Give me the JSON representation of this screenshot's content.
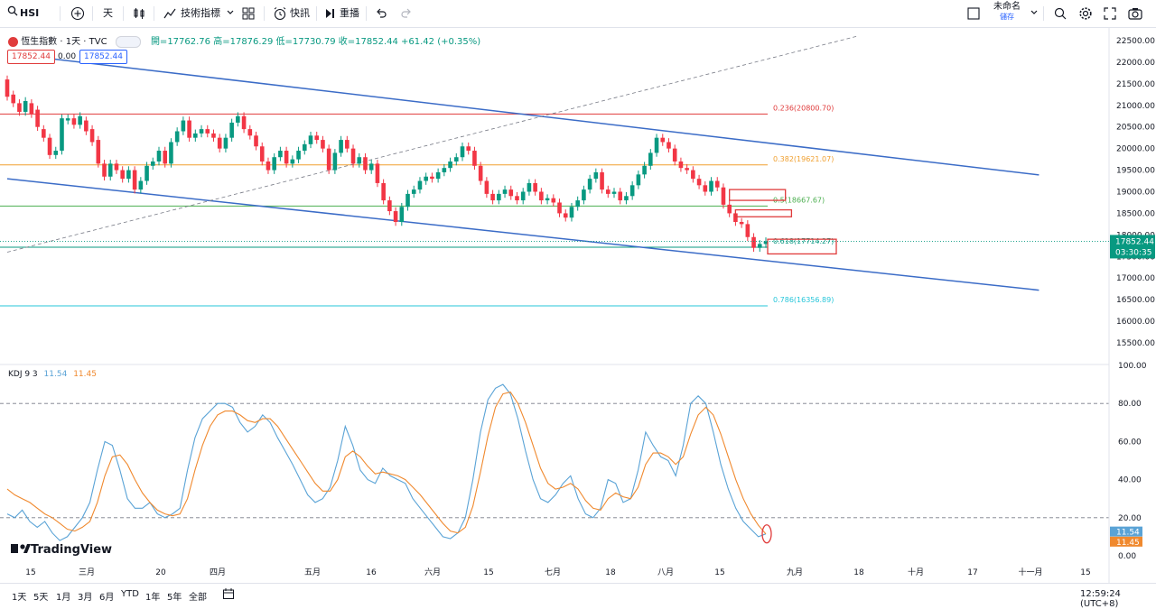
{
  "toolbar": {
    "symbol": "HSI",
    "interval": "天",
    "indicators_label": "技術指標",
    "alert_label": "快訊",
    "replay_label": "重播",
    "layout_name": "未命名",
    "save_label": "儲存",
    "icons": [
      "search-icon",
      "plus-icon",
      "candle-icon",
      "indicator-icon",
      "grid-icon",
      "alarm-icon",
      "replay-icon",
      "undo-icon",
      "redo-icon",
      "layout-icon",
      "chevron-icon",
      "zoom-search-icon",
      "gear-icon",
      "camera-icon",
      "fullscreen-icon"
    ]
  },
  "legend": {
    "title": "恆生指數 · 1天 · TVC",
    "ohlc": "開=17762.76  高=17876.29  低=17730.79  收=17852.44  +61.42 (+0.35%)",
    "bid": "17852.44",
    "spread": "0.00",
    "ask": "17852.44"
  },
  "kdj_legend": {
    "name": "KDJ 9 3",
    "k": "11.54",
    "d": "11.45"
  },
  "watermark": "TradingView",
  "bottombar": {
    "ranges": [
      "1天",
      "5天",
      "1月",
      "3月",
      "6月",
      "YTD",
      "1年",
      "5年",
      "全部"
    ],
    "clock": "12:59:24 (UTC+8)"
  },
  "chart_data": [
    {
      "type": "candlestick",
      "title": "恆生指數 · 1天 · TVC",
      "ylim": [
        15500,
        22500
      ],
      "y_ticks": [
        "22500.00",
        "22000.00",
        "21500.00",
        "21000.00",
        "20500.00",
        "20000.00",
        "19500.00",
        "19000.00",
        "18500.00",
        "18000.00",
        "17500.00",
        "17000.00",
        "16500.00",
        "16000.00",
        "15500.00"
      ],
      "x_ticks": [
        "15",
        "三月",
        "20",
        "四月",
        "五月",
        "16",
        "六月",
        "15",
        "七月",
        "18",
        "八月",
        "15",
        "九月",
        "18",
        "十月",
        "17",
        "十一月",
        "15"
      ],
      "last_price": "17852.44",
      "countdown": "03:30:35",
      "candles": [
        [
          21600,
          21200
        ],
        [
          21250,
          21050
        ],
        [
          21050,
          20850
        ],
        [
          20850,
          21100
        ],
        [
          21050,
          20800
        ],
        [
          20900,
          20500
        ],
        [
          20450,
          20250
        ],
        [
          20250,
          19850
        ],
        [
          19850,
          19950
        ],
        [
          19950,
          20700
        ],
        [
          20650,
          20700
        ],
        [
          20700,
          20550
        ],
        [
          20550,
          20750
        ],
        [
          20650,
          20400
        ],
        [
          20450,
          20150
        ],
        [
          20200,
          19650
        ],
        [
          19650,
          19350
        ],
        [
          19350,
          19650
        ],
        [
          19650,
          19500
        ],
        [
          19500,
          19300
        ],
        [
          19300,
          19500
        ],
        [
          19500,
          19050
        ],
        [
          19050,
          19250
        ],
        [
          19250,
          19600
        ],
        [
          19600,
          19700
        ],
        [
          19700,
          19950
        ],
        [
          19950,
          19650
        ],
        [
          19650,
          20150
        ],
        [
          20150,
          20400
        ],
        [
          20400,
          20650
        ],
        [
          20650,
          20250
        ],
        [
          20250,
          20350
        ],
        [
          20350,
          20450
        ],
        [
          20450,
          20350
        ],
        [
          20350,
          20250
        ],
        [
          20250,
          20000
        ],
        [
          20000,
          20250
        ],
        [
          20250,
          20600
        ],
        [
          20600,
          20750
        ],
        [
          20750,
          20450
        ],
        [
          20450,
          20300
        ],
        [
          20300,
          20050
        ],
        [
          20050,
          19700
        ],
        [
          19700,
          19500
        ],
        [
          19500,
          19800
        ],
        [
          19800,
          19950
        ],
        [
          19950,
          19650
        ],
        [
          19650,
          19750
        ],
        [
          19750,
          19950
        ],
        [
          19950,
          20100
        ],
        [
          20100,
          20300
        ],
        [
          20300,
          20200
        ],
        [
          20200,
          20000
        ],
        [
          20000,
          19500
        ],
        [
          19500,
          19900
        ],
        [
          19900,
          20200
        ],
        [
          20200,
          20000
        ],
        [
          20000,
          19650
        ],
        [
          19650,
          19800
        ],
        [
          19800,
          19500
        ],
        [
          19500,
          19650
        ],
        [
          19650,
          19200
        ],
        [
          19200,
          18800
        ],
        [
          18800,
          18550
        ],
        [
          18550,
          18300
        ],
        [
          18300,
          18650
        ],
        [
          18650,
          18950
        ],
        [
          18950,
          19050
        ],
        [
          19050,
          19250
        ],
        [
          19250,
          19350
        ],
        [
          19350,
          19300
        ],
        [
          19300,
          19450
        ],
        [
          19450,
          19550
        ],
        [
          19550,
          19700
        ],
        [
          19700,
          19800
        ],
        [
          19800,
          20050
        ],
        [
          20050,
          19950
        ],
        [
          19950,
          19600
        ],
        [
          19600,
          19250
        ],
        [
          19250,
          18950
        ],
        [
          18950,
          18800
        ],
        [
          18800,
          18950
        ],
        [
          18950,
          19050
        ],
        [
          19050,
          18900
        ],
        [
          18900,
          18800
        ],
        [
          18800,
          19000
        ],
        [
          19000,
          19200
        ],
        [
          19200,
          19000
        ],
        [
          19000,
          18800
        ],
        [
          18800,
          18850
        ],
        [
          18850,
          18750
        ],
        [
          18750,
          18500
        ],
        [
          18500,
          18400
        ],
        [
          18400,
          18650
        ],
        [
          18650,
          18800
        ],
        [
          18800,
          19050
        ],
        [
          19050,
          19300
        ],
        [
          19300,
          19450
        ],
        [
          19450,
          19050
        ],
        [
          19050,
          18950
        ],
        [
          18950,
          19000
        ],
        [
          19000,
          18800
        ],
        [
          18800,
          18900
        ],
        [
          18900,
          19150
        ],
        [
          19150,
          19400
        ],
        [
          19400,
          19600
        ],
        [
          19600,
          19900
        ],
        [
          19900,
          20250
        ],
        [
          20250,
          20150
        ],
        [
          20150,
          20000
        ],
        [
          20000,
          19700
        ],
        [
          19700,
          19550
        ],
        [
          19550,
          19500
        ],
        [
          19500,
          19300
        ],
        [
          19300,
          19150
        ],
        [
          19150,
          19000
        ],
        [
          19000,
          19250
        ],
        [
          19250,
          19100
        ],
        [
          19100,
          18700
        ],
        [
          18700,
          18500
        ],
        [
          18500,
          18300
        ],
        [
          18300,
          18250
        ],
        [
          18250,
          17950
        ],
        [
          17950,
          17700
        ],
        [
          17700,
          17790
        ],
        [
          17790,
          17852
        ]
      ],
      "fibonacci": [
        {
          "label": "0.236(20800.70)",
          "value": 20800.7,
          "color": "#e03b3b"
        },
        {
          "label": "0.382(19621.07)",
          "value": 19621.07,
          "color": "#f0a030"
        },
        {
          "label": "0.5(18667.67)",
          "value": 18667.67,
          "color": "#4caf50"
        },
        {
          "label": "0.618(17714.27)",
          "value": 17714.27,
          "color": "#089981"
        },
        {
          "label": "0.786(16356.89)",
          "value": 16356.89,
          "color": "#26c6da"
        }
      ],
      "channel_upper": [
        [
          0,
          22200
        ],
        [
          170,
          19390
        ]
      ],
      "channel_lower": [
        [
          0,
          19300
        ],
        [
          170,
          16720
        ]
      ],
      "diagonal": [
        [
          0,
          17600
        ],
        [
          140,
          22600
        ]
      ]
    },
    {
      "type": "line",
      "title": "KDJ 9 3",
      "ylim": [
        0,
        100
      ],
      "y_ticks": [
        "100.00",
        "80.00",
        "60.00",
        "40.00",
        "20.00",
        "0.00"
      ],
      "dashed_levels": [
        80,
        20
      ],
      "series": [
        {
          "name": "K",
          "color": "#5aa3d6",
          "values": [
            22,
            20,
            24,
            18,
            15,
            18,
            12,
            8,
            10,
            15,
            20,
            28,
            45,
            60,
            58,
            45,
            30,
            25,
            25,
            28,
            22,
            20,
            22,
            25,
            45,
            62,
            72,
            76,
            80,
            80,
            78,
            70,
            65,
            68,
            74,
            70,
            62,
            55,
            48,
            40,
            32,
            28,
            30,
            36,
            50,
            68,
            58,
            45,
            40,
            38,
            46,
            42,
            40,
            38,
            30,
            25,
            20,
            15,
            10,
            9,
            12,
            20,
            40,
            65,
            82,
            88,
            90,
            85,
            72,
            55,
            40,
            30,
            28,
            32,
            38,
            42,
            30,
            22,
            20,
            25,
            40,
            38,
            28,
            30,
            45,
            65,
            58,
            52,
            50,
            42,
            58,
            80,
            84,
            80,
            65,
            48,
            35,
            25,
            18,
            14,
            10,
            11.54
          ]
        },
        {
          "name": "D",
          "color": "#f0892e",
          "values": [
            35,
            32,
            30,
            28,
            25,
            22,
            20,
            17,
            14,
            13,
            15,
            18,
            28,
            42,
            52,
            53,
            48,
            40,
            33,
            28,
            24,
            22,
            21,
            22,
            30,
            45,
            58,
            68,
            74,
            76,
            76,
            74,
            71,
            70,
            72,
            72,
            68,
            62,
            56,
            50,
            44,
            38,
            34,
            34,
            40,
            52,
            55,
            52,
            47,
            43,
            44,
            43,
            42,
            40,
            36,
            32,
            27,
            22,
            17,
            13,
            12,
            15,
            26,
            44,
            63,
            78,
            85,
            86,
            80,
            70,
            58,
            46,
            38,
            35,
            36,
            38,
            35,
            29,
            25,
            24,
            30,
            33,
            31,
            30,
            36,
            48,
            54,
            54,
            52,
            48,
            52,
            64,
            74,
            78,
            74,
            64,
            52,
            40,
            30,
            22,
            16,
            11.45
          ]
        }
      ]
    }
  ]
}
